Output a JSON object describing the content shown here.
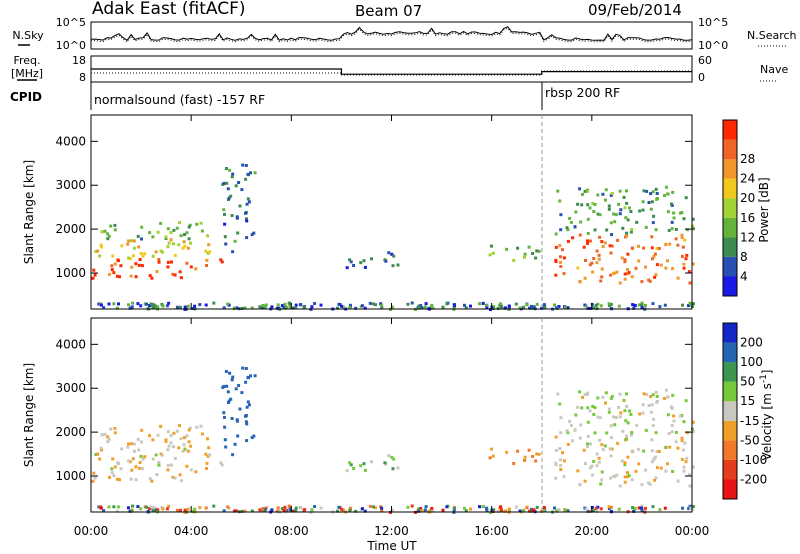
{
  "header": {
    "station": "Adak East (fitACF)",
    "beam": "Beam 07",
    "date": "09/Feb/2014"
  },
  "noise_panel": {
    "left_label": "N.Sky",
    "right_label": "N.Search",
    "left_ticks": [
      "10^5",
      "10^0"
    ],
    "right_ticks": [
      "10^5",
      "10^0"
    ]
  },
  "freq_panel": {
    "left_label_1": "Freq.",
    "left_label_2": "[MHz]",
    "right_label": "Nave",
    "left_ticks": [
      "18",
      "8"
    ],
    "right_ticks": [
      "60",
      "0"
    ],
    "cpid_label": "CPID",
    "cpid_modes": [
      {
        "label": "normalsound (fast) -157 RF",
        "start_h": 0,
        "end_h": 18
      },
      {
        "label": "rbsp 200 RF",
        "start_h": 18,
        "end_h": 24
      }
    ],
    "freq_levels": [
      {
        "start_h": 0,
        "end_h": 10,
        "value": 13
      },
      {
        "start_h": 10,
        "end_h": 18,
        "value": 11
      },
      {
        "start_h": 18,
        "end_h": 24,
        "value": 12
      }
    ]
  },
  "power_panel": {
    "ylabel": "Slant Range [km]",
    "yticks": [
      "1000",
      "2000",
      "3000",
      "4000"
    ],
    "colorbar_label": "Power [dB]",
    "colorbar_ticks": [
      "4",
      "8",
      "12",
      "16",
      "20",
      "24",
      "28"
    ],
    "colors": [
      "#1a1ae6",
      "#2850b4",
      "#3c8c50",
      "#64b43c",
      "#a0d232",
      "#f0c81e",
      "#f0962a",
      "#f06428",
      "#ff2800"
    ]
  },
  "velocity_panel": {
    "ylabel": "Slant Range [km]",
    "yticks": [
      "1000",
      "2000",
      "3000",
      "4000"
    ],
    "colorbar_label": "Velocity [m s^-1]",
    "colorbar_ticks": [
      "200",
      "100",
      "50",
      "15",
      "-15",
      "-50",
      "-100",
      "-200"
    ],
    "colors": [
      "#1428c8",
      "#2864b4",
      "#3c9650",
      "#78c83c",
      "#c8c8c0",
      "#f0a028",
      "#f07828",
      "#e63c1e",
      "#e61414"
    ]
  },
  "xaxis": {
    "label": "Time UT",
    "ticks": [
      "00:00",
      "04:00",
      "08:00",
      "12:00",
      "16:00",
      "20:00",
      "00:00"
    ]
  },
  "chart_data": {
    "type": "heatmap",
    "title": "Adak East (fitACF) Beam 07 09/Feb/2014",
    "xlabel": "Time UT",
    "ylabel": "Slant Range [km]",
    "xlim_hours": [
      0,
      24
    ],
    "ylim_km": [
      180,
      4600
    ],
    "panels": [
      "Power [dB]",
      "Velocity [m s^-1]"
    ],
    "power_scale_db": [
      0,
      32
    ],
    "velocity_scale_ms": [
      -250,
      250
    ],
    "echo_regions": [
      {
        "t0": 0.0,
        "t1": 5.2,
        "r0": 900,
        "r1": 1350,
        "power_db": 28,
        "velocity": -10
      },
      {
        "t0": 0.0,
        "t1": 5.0,
        "r0": 1350,
        "r1": 1800,
        "power_db": 20,
        "velocity": -10
      },
      {
        "t0": 0.0,
        "t1": 4.8,
        "r0": 1800,
        "r1": 2200,
        "power_db": 12,
        "velocity": -10
      },
      {
        "t0": 5.2,
        "t1": 6.5,
        "r0": 1500,
        "r1": 3500,
        "power_db": 8,
        "velocity": 150
      },
      {
        "t0": 10.0,
        "t1": 12.5,
        "r0": 1150,
        "r1": 1500,
        "power_db": 6,
        "velocity": 35
      },
      {
        "t0": 15.8,
        "t1": 18.0,
        "r0": 1300,
        "r1": 1650,
        "power_db": 12,
        "velocity": -50
      },
      {
        "t0": 18.5,
        "t1": 24.0,
        "r0": 800,
        "r1": 1900,
        "power_db": 26,
        "velocity": -8
      },
      {
        "t0": 18.5,
        "t1": 24.0,
        "r0": 1900,
        "r1": 3000,
        "power_db": 10,
        "velocity": 10
      }
    ]
  }
}
